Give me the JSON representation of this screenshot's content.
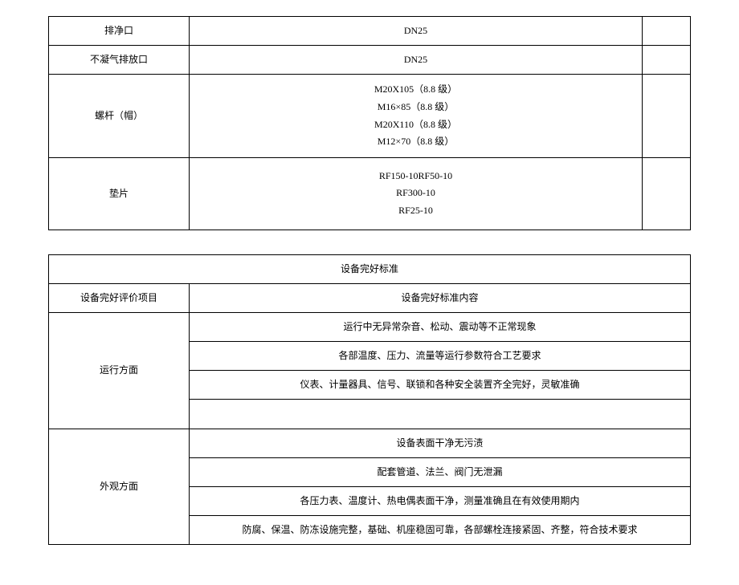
{
  "table1": {
    "rows": [
      {
        "label": "排净口",
        "value": "DN25",
        "empty": ""
      },
      {
        "label": "不凝气排放口",
        "value": "DN25",
        "empty": ""
      },
      {
        "label": "螺杆（帽）",
        "value_lines": [
          "M20X105（8.8 级）",
          "M16×85（8.8 级）",
          "M20X110（8.8 级）",
          "M12×70（8.8 级）"
        ],
        "empty": ""
      },
      {
        "label": "垫片",
        "value_lines": [
          "RF150-10RF50-10",
          "RF300-10",
          "RF25-10"
        ],
        "empty": ""
      }
    ]
  },
  "table2": {
    "title": "设备完好标准",
    "header": {
      "col1": "设备完好评价项目",
      "col2": "设备完好标准内容"
    },
    "sections": [
      {
        "label": "运行方面",
        "items": [
          "运行中无异常杂音、松动、震动等不正常现象",
          "各部温度、压力、流量等运行参数符合工艺要求",
          "仪表、计量器具、信号、联锁和各种安全装置齐全完好，灵敏准确",
          ""
        ]
      },
      {
        "label": "外观方面",
        "items": [
          "设备表面干净无污渍",
          "配套管道、法兰、阀门无泄漏",
          "各压力表、温度计、热电偶表面干净，测量准确且在有效使用期内",
          "防腐、保温、防冻设施完整，基础、机座稳固可靠，各部螺栓连接紧固、齐整，符合技术要求"
        ]
      }
    ]
  },
  "colors": {
    "border": "#000000",
    "background": "#ffffff",
    "text": "#000000"
  },
  "typography": {
    "font_family": "SimSun",
    "font_size": 12
  }
}
